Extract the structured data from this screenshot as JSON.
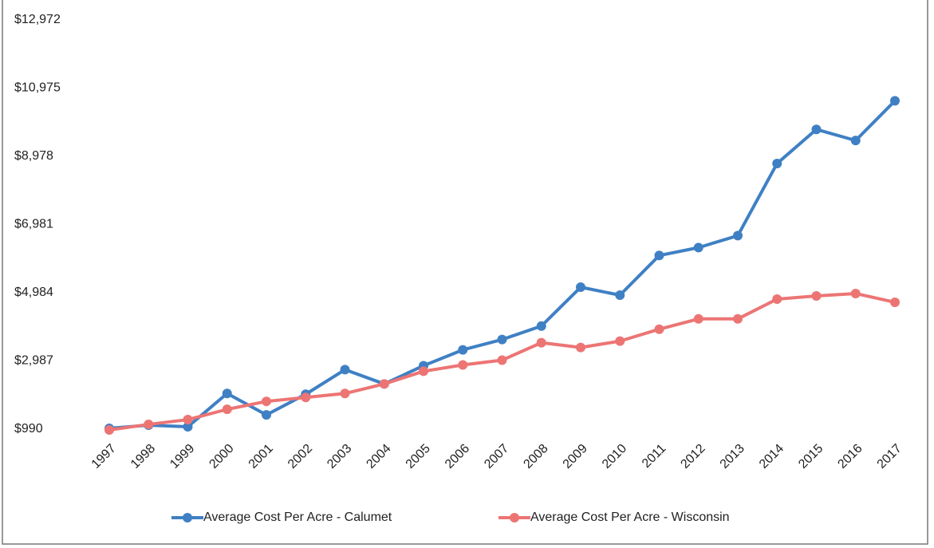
{
  "chart_data": {
    "type": "line",
    "categories": [
      "1997",
      "1998",
      "1999",
      "2000",
      "2001",
      "2002",
      "2003",
      "2004",
      "2005",
      "2006",
      "2007",
      "2008",
      "2009",
      "2010",
      "2011",
      "2012",
      "2013",
      "2014",
      "2015",
      "2016",
      "2017"
    ],
    "series": [
      {
        "name": "Average Cost Per Acre - Calumet",
        "color": "#3f80c4",
        "values": [
          1013,
          1106,
          1060,
          2035,
          1408,
          2012,
          2732,
          2314,
          2848,
          3312,
          3614,
          4009,
          5147,
          4914,
          6075,
          6307,
          6656,
          8769,
          9767,
          9442,
          10603
        ]
      },
      {
        "name": "Average Cost Per Acre - Wisconsin",
        "color": "#ec7574",
        "values": [
          967,
          1129,
          1269,
          1571,
          1803,
          1919,
          2035,
          2314,
          2685,
          2871,
          3010,
          3521,
          3382,
          3568,
          3916,
          4218,
          4218,
          4798,
          4891,
          4961,
          4705
        ]
      }
    ],
    "ylim": [
      990,
      12972
    ],
    "yticks": [
      {
        "value": 990,
        "label": "$990"
      },
      {
        "value": 2987,
        "label": "$2,987"
      },
      {
        "value": 4984,
        "label": "$4,984"
      },
      {
        "value": 6981,
        "label": "$6,981"
      },
      {
        "value": 8978,
        "label": "$8,978"
      },
      {
        "value": 10975,
        "label": "$10,975"
      },
      {
        "value": 12972,
        "label": "$12,972"
      }
    ],
    "legend": "bottom"
  }
}
